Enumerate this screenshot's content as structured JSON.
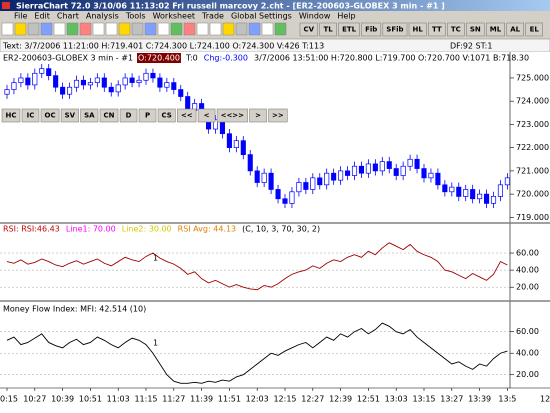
{
  "window": {
    "title": "SierraChart 72.0  3/10/06 11:13:02 Fri   russell marcovy 2.cht - [ER2-200603-GLOBEX 3 min - #1 ]"
  },
  "menu": [
    "File",
    "Edit",
    "Chart",
    "Analysis",
    "Tools",
    "Worksheet",
    "Trade",
    "Global Settings",
    "Window",
    "Help"
  ],
  "toolbar": [
    "CV",
    "TL",
    "ETL",
    "Fib",
    "SFib",
    "HL",
    "TT",
    "TC",
    "SN",
    "ML",
    "AL",
    "EL"
  ],
  "chart_toolbar": [
    "HC",
    "IC",
    "OC",
    "SV",
    "SA",
    "CN",
    "D",
    "P",
    "CS",
    "<<",
    "<",
    "<<>>",
    ">",
    ">>"
  ],
  "status": {
    "text": "Text: 3/7/2006 11:21:00 H:719.401 C:724.300 L:724.100 O:724.300 V:426 T:113",
    "right": "DF:92 ST:1"
  },
  "chart_data": [
    {
      "type": "candlestick",
      "title": "ER2-200603-GLOBEX 3 min - #1",
      "header_parts": [
        {
          "text": "O:720.400",
          "color": "#ffffff",
          "background": "#800000"
        },
        {
          "text": "T:0",
          "color": "#000000"
        },
        {
          "text": "Chg:-0.300",
          "color": "#0000ff"
        },
        {
          "text": "3/7/2006 13:51:00 H:720.800 L:719.700 O:720.700 V:1071 B:718.30",
          "color": "#000000"
        }
      ],
      "categories": [
        "0:15",
        null,
        null,
        null,
        "10:27",
        null,
        null,
        null,
        "10:39",
        null,
        null,
        null,
        "10:51",
        null,
        null,
        null,
        "11:03",
        null,
        null,
        null,
        "11:15",
        null,
        null,
        null,
        "11:27",
        null,
        null,
        null,
        "11:39",
        null,
        null,
        null,
        "11:51",
        null,
        null,
        null,
        "12:03",
        null,
        null,
        null,
        "12:15",
        null,
        null,
        null,
        "12:27",
        null,
        null,
        null,
        "12:39",
        null,
        null,
        null,
        "12:51",
        null,
        null,
        null,
        "13:03",
        null,
        null,
        null,
        "13:15",
        null,
        null,
        null,
        "13:27",
        null,
        null,
        null,
        "13:39",
        null,
        null,
        null,
        "13:5"
      ],
      "x_axis_end_label": "12",
      "open": [
        724.3,
        724.5,
        724.8,
        725.0,
        724.7,
        725.2,
        725.4,
        725.1,
        724.6,
        724.3,
        724.6,
        724.9,
        724.7,
        724.8,
        725.0,
        724.6,
        724.4,
        724.7,
        725.0,
        724.8,
        724.9,
        725.2,
        725.0,
        724.6,
        724.8,
        724.5,
        724.2,
        723.6,
        723.9,
        723.3,
        722.8,
        723.2,
        722.6,
        722.0,
        722.3,
        721.7,
        721.0,
        720.5,
        720.9,
        720.2,
        719.8,
        719.6,
        720.1,
        720.5,
        720.2,
        720.7,
        720.4,
        720.9,
        720.6,
        721.0,
        720.8,
        721.2,
        720.9,
        721.3,
        721.0,
        721.4,
        721.1,
        720.8,
        721.2,
        721.5,
        721.1,
        720.7,
        720.9,
        720.4,
        720.1,
        720.3,
        719.9,
        720.2,
        719.8,
        720.0,
        719.6,
        719.9,
        720.4
      ],
      "high": [
        724.7,
        725.0,
        725.2,
        725.2,
        725.4,
        725.6,
        725.6,
        725.3,
        724.8,
        724.8,
        725.1,
        725.1,
        725.0,
        725.2,
        725.2,
        724.8,
        724.9,
        725.2,
        725.2,
        725.1,
        725.4,
        725.4,
        725.2,
        725.0,
        725.0,
        724.7,
        724.4,
        724.1,
        724.1,
        723.5,
        723.4,
        723.4,
        722.8,
        722.5,
        722.5,
        721.9,
        721.2,
        721.1,
        721.1,
        720.4,
        720.0,
        720.3,
        720.7,
        720.7,
        720.9,
        720.9,
        721.1,
        721.1,
        721.2,
        721.2,
        721.4,
        721.4,
        721.5,
        721.5,
        721.6,
        721.6,
        721.3,
        721.4,
        721.7,
        721.7,
        721.3,
        721.1,
        721.1,
        720.6,
        720.5,
        720.5,
        720.4,
        720.4,
        720.2,
        720.2,
        720.1,
        720.6,
        720.9
      ],
      "low": [
        724.1,
        724.3,
        724.6,
        724.5,
        724.5,
        725.0,
        724.9,
        724.4,
        724.1,
        724.1,
        724.4,
        724.5,
        724.5,
        724.6,
        724.4,
        724.2,
        724.2,
        724.5,
        724.6,
        724.6,
        724.7,
        724.8,
        724.4,
        724.4,
        724.3,
        724.0,
        723.4,
        723.4,
        723.1,
        722.6,
        722.6,
        722.4,
        721.8,
        721.8,
        721.5,
        720.8,
        720.3,
        720.3,
        720.0,
        719.6,
        719.4,
        719.4,
        719.9,
        720.0,
        720.0,
        720.2,
        720.2,
        720.4,
        720.4,
        720.6,
        720.6,
        720.7,
        720.7,
        720.8,
        720.8,
        720.9,
        720.6,
        720.6,
        721.0,
        720.9,
        720.5,
        720.5,
        720.2,
        719.9,
        719.9,
        719.7,
        719.7,
        719.6,
        719.6,
        719.4,
        719.4,
        719.7,
        720.2
      ],
      "close": [
        724.5,
        724.8,
        725.0,
        724.7,
        725.2,
        725.4,
        725.1,
        724.6,
        724.3,
        724.6,
        724.9,
        724.7,
        724.8,
        725.0,
        724.6,
        724.4,
        724.7,
        725.0,
        724.8,
        724.9,
        725.2,
        725.0,
        724.6,
        724.8,
        724.5,
        724.2,
        723.6,
        723.9,
        723.3,
        722.8,
        723.2,
        722.6,
        722.0,
        722.3,
        721.7,
        721.0,
        720.5,
        720.9,
        720.2,
        719.8,
        719.6,
        720.1,
        720.5,
        720.2,
        720.7,
        720.4,
        720.9,
        720.6,
        721.0,
        720.8,
        721.2,
        720.9,
        721.3,
        721.0,
        721.4,
        721.1,
        720.8,
        721.2,
        721.5,
        721.1,
        720.7,
        720.9,
        720.4,
        720.1,
        720.3,
        719.9,
        720.2,
        719.8,
        720.0,
        719.6,
        719.9,
        720.4,
        720.7
      ],
      "color": "#0000ff",
      "ylim": [
        718.8,
        725.6
      ],
      "yticks": [
        {
          "value": 725,
          "label": "725.000"
        },
        {
          "value": 724,
          "label": "724.000"
        },
        {
          "value": 723,
          "label": "723.000"
        },
        {
          "value": 722,
          "label": "722.000"
        },
        {
          "value": 721,
          "label": "721.000"
        },
        {
          "value": 720,
          "label": "720.000"
        },
        {
          "value": 719,
          "label": "719.000"
        }
      ]
    },
    {
      "type": "line",
      "title_parts": [
        {
          "text": "RSI:  RSI:46.43",
          "color": "#c00000"
        },
        {
          "text": "Line1: 70.00",
          "color": "#ff00ff"
        },
        {
          "text": "Line2: 30.00",
          "color": "#d8c800"
        },
        {
          "text": "RSI Avg: 44.13",
          "color": "#e08000"
        },
        {
          "text": "(C, 10, 3, 70, 30, 2)",
          "color": "#000000"
        }
      ],
      "annotation": "1",
      "values": [
        50,
        48,
        52,
        47,
        49,
        53,
        50,
        46,
        44,
        48,
        51,
        47,
        50,
        53,
        48,
        45,
        50,
        55,
        52,
        50,
        56,
        60,
        54,
        50,
        47,
        42,
        35,
        38,
        30,
        25,
        28,
        24,
        20,
        23,
        20,
        18,
        17,
        22,
        20,
        24,
        30,
        35,
        38,
        40,
        45,
        42,
        48,
        52,
        50,
        55,
        58,
        55,
        62,
        58,
        66,
        72,
        68,
        64,
        70,
        62,
        58,
        55,
        50,
        40,
        38,
        34,
        30,
        36,
        32,
        28,
        35,
        50,
        46
      ],
      "color": "#a00000",
      "ylim": [
        5,
        94
      ],
      "yticks": [
        {
          "value": 60,
          "label": "60.00"
        },
        {
          "value": 40,
          "label": "40.00"
        },
        {
          "value": 20,
          "label": "20.00"
        }
      ],
      "grid": true
    },
    {
      "type": "line",
      "title_parts": [
        {
          "text": "Money Flow Index:  MFI: 42.514  (10)",
          "color": "#000000"
        }
      ],
      "annotation": "1",
      "values": [
        52,
        55,
        48,
        50,
        54,
        58,
        50,
        47,
        45,
        50,
        53,
        48,
        50,
        55,
        52,
        48,
        45,
        50,
        54,
        52,
        48,
        40,
        30,
        20,
        14,
        12,
        12,
        13,
        12,
        14,
        13,
        15,
        14,
        18,
        20,
        25,
        30,
        35,
        40,
        38,
        42,
        45,
        48,
        50,
        45,
        50,
        55,
        52,
        58,
        55,
        60,
        63,
        58,
        62,
        68,
        65,
        60,
        58,
        62,
        55,
        50,
        45,
        40,
        35,
        30,
        32,
        28,
        25,
        30,
        28,
        35,
        40,
        42
      ],
      "color": "#000000",
      "ylim": [
        8.6,
        87.6
      ],
      "yticks": [
        {
          "value": 60,
          "label": "60.00"
        },
        {
          "value": 40,
          "label": "40.00"
        },
        {
          "value": 20,
          "label": "20.00"
        }
      ],
      "grid": true
    }
  ]
}
